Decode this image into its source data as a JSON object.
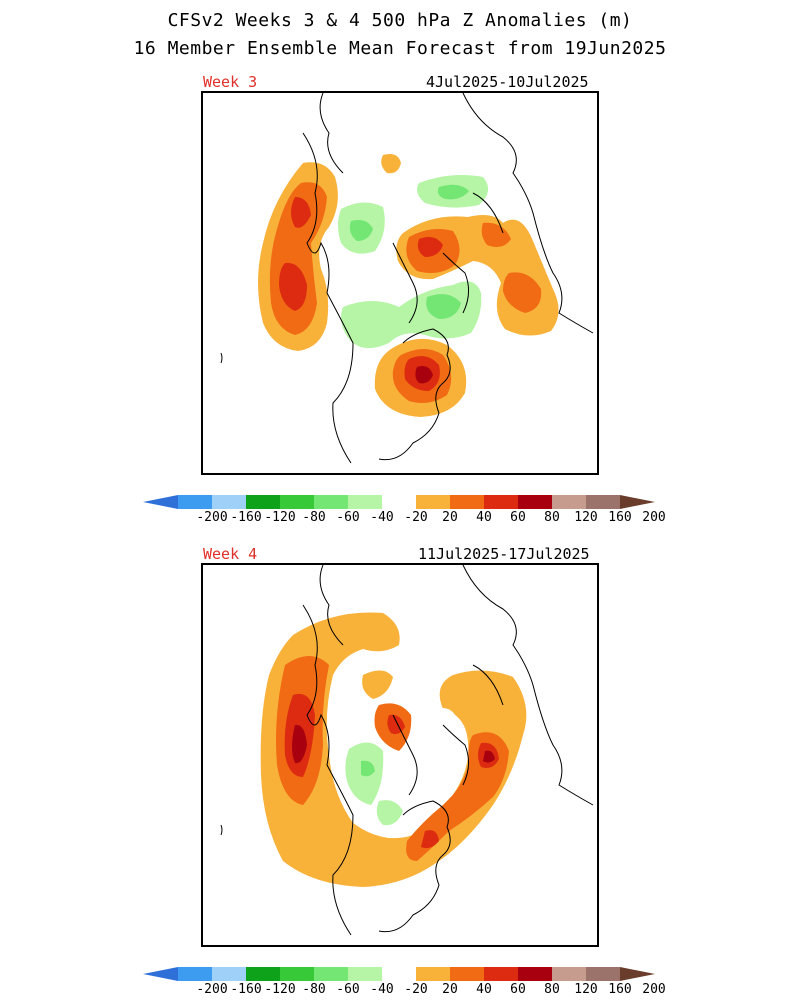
{
  "title": "CFSv2 Weeks 3 & 4 500 hPa Z Anomalies (m)",
  "subtitle": "16 Member Ensemble Mean Forecast from 19Jun2025",
  "panels": [
    {
      "label": "Week 3",
      "dates": "4Jul2025-10Jul2025"
    },
    {
      "label": "Week 4",
      "dates": "11Jul2025-17Jul2025"
    }
  ],
  "colorbar": {
    "labels": [
      "-200",
      "-160",
      "-120",
      "-80",
      "-60",
      "-40",
      "-20",
      "20",
      "40",
      "60",
      "80",
      "120",
      "160",
      "200"
    ],
    "colors": [
      "#2f6fd8",
      "#3e9cf0",
      "#9fd0f7",
      "#0ea11a",
      "#38c938",
      "#73e673",
      "#b5f5a5",
      "#ffffff",
      "#f8b23a",
      "#f06b13",
      "#dc2b10",
      "#a8000f",
      "#c59c8e",
      "#9c736a",
      "#6a3c2c"
    ]
  }
}
